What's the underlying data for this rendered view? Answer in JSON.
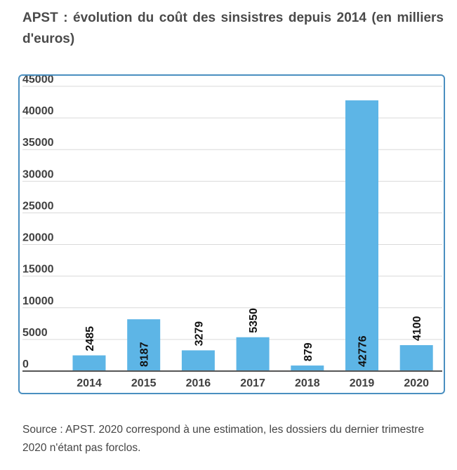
{
  "header": {
    "title": "APST : évolution du coût des sinsistres depuis 2014 (en milliers d'euros)"
  },
  "footer": {
    "source": "Source : APST. 2020 correspond à une estimation, les dossiers du dernier trimestre 2020 n'étant pas forclos."
  },
  "chart_data": {
    "type": "bar",
    "title": "APST : évolution du coût des sinsistres depuis 2014 (en milliers d'euros)",
    "categories": [
      "2014",
      "2015",
      "2016",
      "2017",
      "2018",
      "2019",
      "2020"
    ],
    "values": [
      2485,
      8187,
      3279,
      5350,
      879,
      42776,
      4100
    ],
    "data_labels": [
      "2485",
      "8187",
      "3279",
      "5350",
      "879",
      "42776",
      "4100"
    ],
    "label_inside": [
      false,
      true,
      false,
      false,
      false,
      true,
      false
    ],
    "ylim": [
      0,
      45000
    ],
    "yticks": [
      0,
      5000,
      10000,
      15000,
      20000,
      25000,
      30000,
      35000,
      40000,
      45000
    ],
    "ytick_labels": [
      "0",
      "5000",
      "10000",
      "15000",
      "20000",
      "25000",
      "30000",
      "35000",
      "40000",
      "45000"
    ],
    "xlabel": "",
    "ylabel": "",
    "grid": true,
    "legend": "none",
    "colors": {
      "bar": "#5db5e6",
      "grid": "#d9d9d9",
      "axis": "#555555",
      "frame": "#4a8fc0"
    }
  }
}
